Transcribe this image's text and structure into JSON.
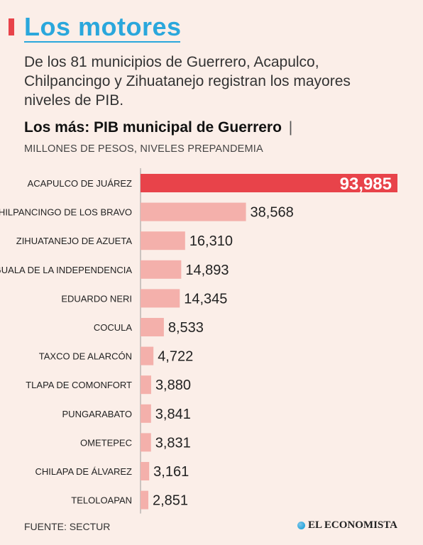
{
  "header": {
    "title": "Los motores",
    "subtitle": "De los 81 municipios de Guerrero, Acapulco, Chilpancingo y Zihuatanejo registran los mayores niveles de PIB."
  },
  "chart_data": {
    "type": "bar",
    "orientation": "horizontal",
    "title": "Los más: PIB municipal de Guerrero",
    "title_separator": "|",
    "subtitle": "MILLONES DE PESOS, NIVELES PREPANDEMIA",
    "categories": [
      "ACAPULCO DE JUÁREZ",
      "CHILPANCINGO DE LOS BRAVO",
      "ZIHUATANEJO DE AZUETA",
      "IGUALA DE LA INDEPENDENCIA",
      "EDUARDO NERI",
      "COCULA",
      "TAXCO DE ALARCÓN",
      "TLAPA DE COMONFORT",
      "PUNGARABATO",
      "OMETEPEC",
      "CHILAPA DE ÁLVAREZ",
      "TELOLOAPAN"
    ],
    "values": [
      93985,
      38568,
      16310,
      14893,
      14345,
      8533,
      4722,
      3880,
      3841,
      3831,
      3161,
      2851
    ],
    "value_labels": [
      "93,985",
      "38,568",
      "16,310",
      "14,893",
      "14,345",
      "8,533",
      "4,722",
      "3,880",
      "3,841",
      "3,831",
      "3,161",
      "2,851"
    ],
    "highlight_color": "#e8434a",
    "bar_color": "#f4b0ab",
    "xlabel": "",
    "ylabel": ""
  },
  "footer": {
    "source": "FUENTE: SECTUR",
    "brand": "EL ECONOMISTA"
  }
}
